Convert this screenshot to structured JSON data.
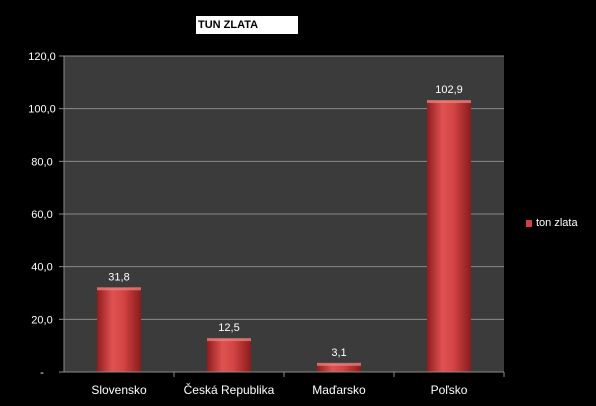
{
  "chart_data": {
    "type": "bar",
    "title": "TUN ZLATA",
    "categories": [
      "Slovensko",
      "Česká Republika",
      "Maďarsko",
      "Poľsko"
    ],
    "series": [
      {
        "name": "ton zlata",
        "values": [
          31.8,
          12.5,
          3.1,
          102.9
        ],
        "value_labels": [
          "31,8",
          "12,5",
          "3,1",
          "102,9"
        ],
        "color": "#d24040"
      }
    ],
    "y_ticks": [
      "-",
      "20,0",
      "40,0",
      "60,0",
      "80,0",
      "100,0",
      "120,0"
    ],
    "ylim": [
      0,
      120
    ],
    "grid": true,
    "legend_position": "right",
    "plot_background": "#3b3b3b",
    "page_background": "#000000"
  }
}
